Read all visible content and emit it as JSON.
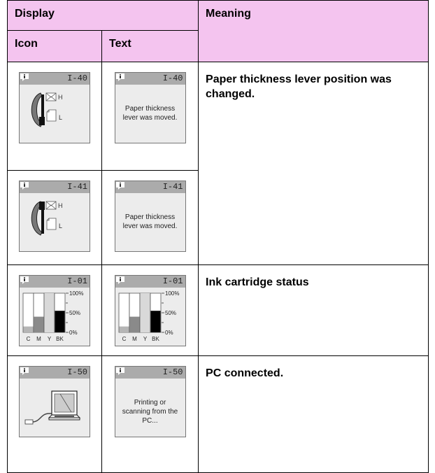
{
  "table": {
    "headers": {
      "display": "Display",
      "meaning": "Meaning",
      "icon": "Icon",
      "text": "Text"
    },
    "rows": [
      {
        "meaning": "Paper thickness lever position was changed.",
        "entries": [
          {
            "icon": {
              "code": "I-40",
              "high": "H",
              "low": "L"
            },
            "text": {
              "code": "I-40",
              "message": "Paper thickness lever was moved."
            }
          },
          {
            "icon": {
              "code": "I-41",
              "high": "H",
              "low": "L"
            },
            "text": {
              "code": "I-41",
              "message": "Paper thickness lever was moved."
            }
          }
        ]
      },
      {
        "meaning": "Ink cartridge status",
        "entries": [
          {
            "icon": {
              "code": "I-01",
              "scale": [
                "100%",
                "50%",
                "0%"
              ],
              "inks": [
                "C",
                "M",
                "Y",
                "BK"
              ]
            },
            "text": {
              "code": "I-01",
              "scale": [
                "100%",
                "50%",
                "0%"
              ],
              "inks": [
                "C",
                "M",
                "Y",
                "BK"
              ]
            }
          }
        ]
      },
      {
        "meaning": "PC connected.",
        "entries": [
          {
            "icon": {
              "code": "I-50"
            },
            "text": {
              "code": "I-50",
              "message": "Printing or scanning from the PC..."
            }
          }
        ]
      }
    ]
  }
}
